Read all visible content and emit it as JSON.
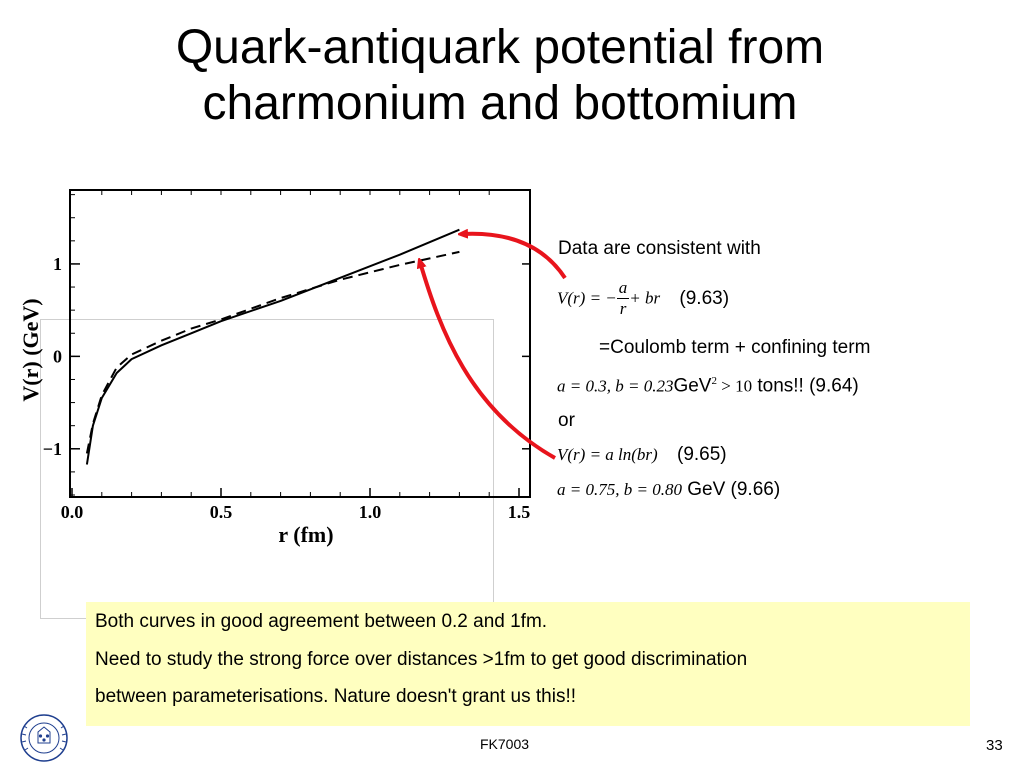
{
  "title_line1": "Quark-antiquark potential from",
  "title_line2": "charmonium and bottomium",
  "equations": {
    "intro": "Data are consistent with",
    "eq1_lhs": "V(r) = −",
    "eq1_num": "a",
    "eq1_den": "r",
    "eq1_rest": "+ br",
    "eq1_tag": "(9.63)",
    "coulomb": "=Coulomb term + confining term",
    "eq2_math": "a = 0.3,  b = 0.23",
    "eq2_unit": "GeV",
    "eq2_sup": "2",
    "eq2_gt": " > 10",
    "eq2_tail": " tons!! (9.64)",
    "or": "or",
    "eq3_math": "V(r) = a ln(br)",
    "eq3_tag": "(9.65)",
    "eq4_math": "a = 0.75, b = 0.80",
    "eq4_tail": " GeV  (9.66)"
  },
  "note": {
    "line1": "Both curves in good agreement between 0.2 and 1fm.",
    "line2": "Need to study the strong force over distances >1fm to get good discrimination",
    "line3": "between parameterisations. Nature doesn't grant us this!!"
  },
  "footer": {
    "course": "FK7003",
    "page": "33"
  },
  "colors": {
    "arrow": "#e8141c",
    "note_bg": "#ffffc0"
  },
  "chart_data": {
    "type": "line",
    "xlabel": "r (fm)",
    "ylabel": "V(r) (GeV)",
    "x_ticks": [
      "0.0",
      "0.5",
      "1.0",
      "1.5"
    ],
    "y_ticks": [
      "1",
      "0",
      "−1"
    ],
    "xlim": [
      0.0,
      1.5
    ],
    "ylim": [
      -1.5,
      1.8
    ],
    "series": [
      {
        "style": "solid",
        "x": [
          0.05,
          0.07,
          0.1,
          0.15,
          0.2,
          0.3,
          0.4,
          0.5,
          0.7,
          0.9,
          1.1,
          1.3
        ],
        "y": [
          -1.17,
          -0.75,
          -0.45,
          -0.18,
          -0.03,
          0.12,
          0.25,
          0.38,
          0.6,
          0.85,
          1.1,
          1.37
        ]
      },
      {
        "style": "dashed",
        "x": [
          0.05,
          0.07,
          0.1,
          0.15,
          0.2,
          0.3,
          0.4,
          0.5,
          0.7,
          0.9,
          1.1,
          1.3
        ],
        "y": [
          -1.05,
          -0.73,
          -0.42,
          -0.12,
          0.02,
          0.17,
          0.3,
          0.4,
          0.63,
          0.83,
          0.99,
          1.13
        ]
      }
    ]
  }
}
